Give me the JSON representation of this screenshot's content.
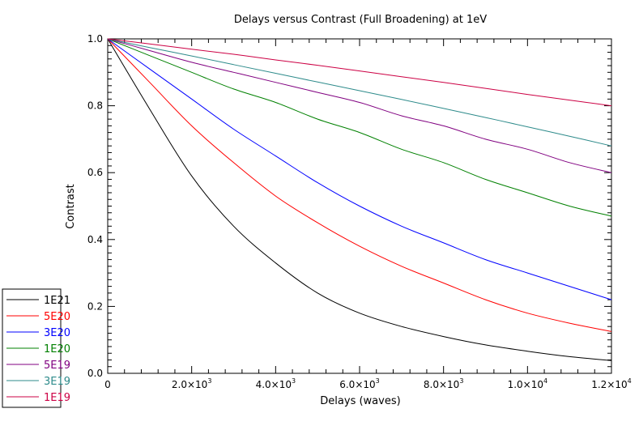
{
  "chart_data": {
    "type": "line",
    "title": "Delays versus Contrast (Full Broadening) at 1eV",
    "xlabel": "Delays (waves)",
    "ylabel": "Contrast",
    "xlim": [
      0,
      12000
    ],
    "ylim": [
      0.0,
      1.0
    ],
    "grid": false,
    "legend_position": "bottom-left",
    "x_ticks": [
      {
        "value": 0,
        "label": "0"
      },
      {
        "value": 2000,
        "mant": "2.0×10",
        "exp": "3"
      },
      {
        "value": 4000,
        "mant": "4.0×10",
        "exp": "3"
      },
      {
        "value": 6000,
        "mant": "6.0×10",
        "exp": "3"
      },
      {
        "value": 8000,
        "mant": "8.0×10",
        "exp": "3"
      },
      {
        "value": 10000,
        "mant": "1.0×10",
        "exp": "4"
      },
      {
        "value": 12000,
        "mant": "1.2×10",
        "exp": "4"
      }
    ],
    "y_ticks": [
      {
        "value": 0.0,
        "label": "0.0"
      },
      {
        "value": 0.2,
        "label": "0.2"
      },
      {
        "value": 0.4,
        "label": "0.4"
      },
      {
        "value": 0.6,
        "label": "0.6"
      },
      {
        "value": 0.8,
        "label": "0.8"
      },
      {
        "value": 1.0,
        "label": "1.0"
      }
    ],
    "x": [
      0,
      1000,
      2000,
      3000,
      4000,
      5000,
      6000,
      7000,
      8000,
      9000,
      10000,
      11000,
      12000
    ],
    "series": [
      {
        "name": "1E21",
        "color": "#000000",
        "values": [
          1.0,
          0.79,
          0.59,
          0.44,
          0.33,
          0.24,
          0.18,
          0.14,
          0.11,
          0.085,
          0.066,
          0.05,
          0.038
        ]
      },
      {
        "name": "5E20",
        "color": "#ff0000",
        "values": [
          1.0,
          0.87,
          0.74,
          0.63,
          0.53,
          0.45,
          0.38,
          0.32,
          0.27,
          0.22,
          0.18,
          0.15,
          0.125
        ]
      },
      {
        "name": "3E20",
        "color": "#0000ff",
        "values": [
          1.0,
          0.91,
          0.82,
          0.73,
          0.65,
          0.57,
          0.5,
          0.44,
          0.39,
          0.34,
          0.3,
          0.26,
          0.22
        ]
      },
      {
        "name": "1E20",
        "color": "#008000",
        "values": [
          1.0,
          0.95,
          0.9,
          0.85,
          0.81,
          0.76,
          0.72,
          0.67,
          0.63,
          0.58,
          0.54,
          0.5,
          0.47
        ]
      },
      {
        "name": "5E19",
        "color": "#800080",
        "values": [
          1.0,
          0.965,
          0.93,
          0.9,
          0.87,
          0.84,
          0.81,
          0.77,
          0.74,
          0.7,
          0.67,
          0.63,
          0.6
        ]
      },
      {
        "name": "3E19",
        "color": "#2e8b8b",
        "values": [
          1.0,
          0.974,
          0.949,
          0.923,
          0.897,
          0.871,
          0.845,
          0.819,
          0.792,
          0.765,
          0.737,
          0.709,
          0.68
        ]
      },
      {
        "name": "1E19",
        "color": "#cc0044",
        "values": [
          1.0,
          0.985,
          0.969,
          0.954,
          0.937,
          0.921,
          0.904,
          0.887,
          0.87,
          0.852,
          0.834,
          0.817,
          0.8
        ]
      }
    ]
  }
}
